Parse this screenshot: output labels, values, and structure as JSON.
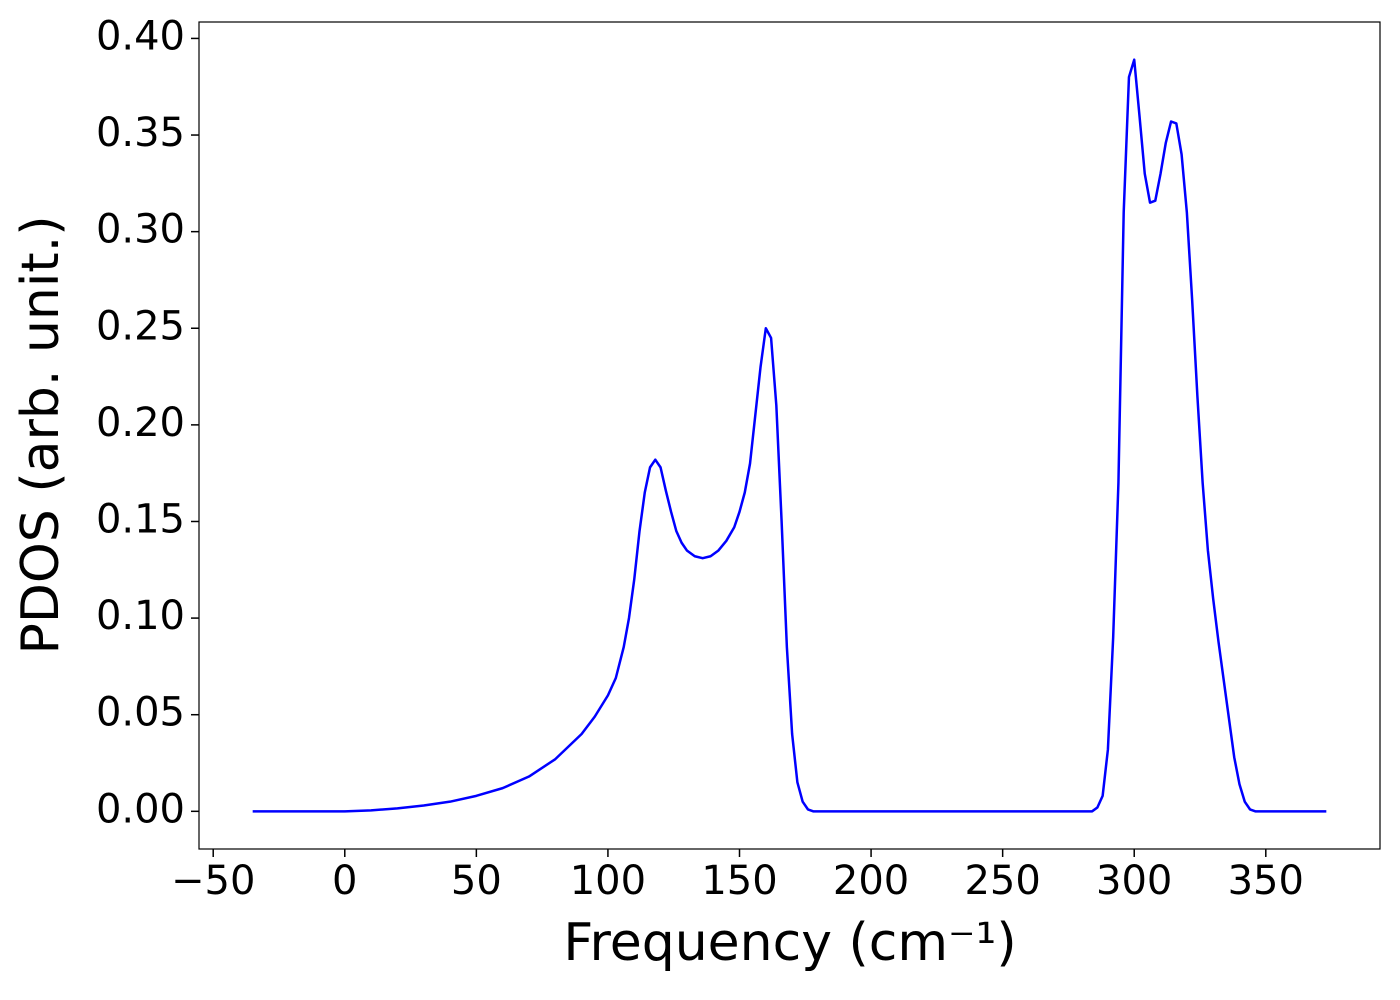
{
  "chart_data": {
    "type": "line",
    "x_label": "Frequency (cm⁻¹)",
    "y_label": "PDOS (arb. unit.)",
    "xlim": [
      -55.4,
      393.4
    ],
    "ylim": [
      -0.0195,
      0.4085
    ],
    "xticks": [
      {
        "value": -50,
        "label": "−50"
      },
      0,
      50,
      100,
      150,
      200,
      250,
      300,
      350
    ],
    "yticks": [
      {
        "value": 0,
        "label": "0.00"
      },
      {
        "value": 0.05,
        "label": "0.05"
      },
      {
        "value": 0.1,
        "label": "0.10"
      },
      {
        "value": 0.15,
        "label": "0.15"
      },
      {
        "value": 0.2,
        "label": "0.20"
      },
      {
        "value": 0.25,
        "label": "0.25"
      },
      {
        "value": 0.3,
        "label": "0.30"
      },
      {
        "value": 0.35,
        "label": "0.35"
      },
      {
        "value": 0.4,
        "label": "0.40"
      }
    ],
    "grid": false,
    "series": [
      {
        "color": "#0000ff",
        "x": [
          -35,
          0,
          10,
          20,
          30,
          40,
          50,
          60,
          70,
          80,
          90,
          95,
          100,
          103,
          106,
          108,
          110,
          112,
          114,
          116,
          118,
          120,
          122,
          124,
          126,
          128,
          130,
          133,
          136,
          139,
          142,
          145,
          148,
          150,
          152,
          154,
          156,
          158,
          160,
          162,
          164,
          166,
          168,
          170,
          172,
          174,
          176,
          178,
          200,
          250,
          284,
          286,
          288,
          290,
          292,
          294,
          296,
          298,
          300,
          302,
          304,
          306,
          308,
          310,
          312,
          314,
          316,
          318,
          320,
          322,
          324,
          326,
          328,
          330,
          332,
          334,
          336,
          338,
          340,
          342,
          344,
          346,
          373
        ],
        "values": [
          0,
          0,
          0.0005,
          0.0015,
          0.003,
          0.005,
          0.008,
          0.012,
          0.018,
          0.027,
          0.04,
          0.049,
          0.06,
          0.069,
          0.085,
          0.1,
          0.12,
          0.145,
          0.165,
          0.178,
          0.182,
          0.178,
          0.166,
          0.155,
          0.145,
          0.139,
          0.135,
          0.132,
          0.131,
          0.132,
          0.135,
          0.14,
          0.147,
          0.155,
          0.165,
          0.18,
          0.205,
          0.23,
          0.25,
          0.245,
          0.21,
          0.15,
          0.085,
          0.04,
          0.015,
          0.005,
          0.001,
          0,
          0,
          0,
          0,
          0.002,
          0.008,
          0.032,
          0.09,
          0.17,
          0.31,
          0.38,
          0.389,
          0.36,
          0.33,
          0.315,
          0.316,
          0.33,
          0.346,
          0.357,
          0.356,
          0.34,
          0.31,
          0.265,
          0.215,
          0.17,
          0.135,
          0.11,
          0.088,
          0.068,
          0.048,
          0.028,
          0.014,
          0.005,
          0.001,
          0,
          0
        ]
      }
    ]
  }
}
